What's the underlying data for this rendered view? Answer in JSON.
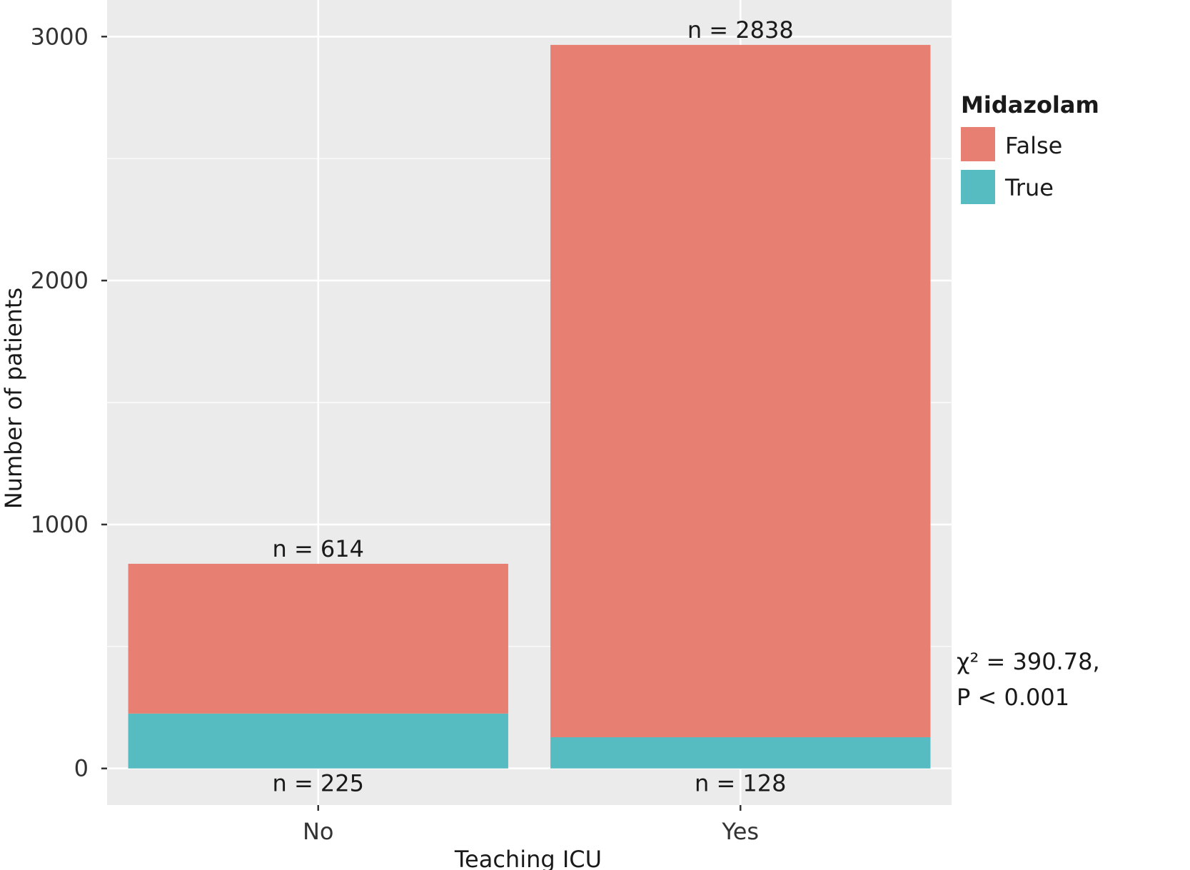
{
  "chart_data": {
    "type": "bar",
    "stacked": true,
    "categories": [
      "No",
      "Yes"
    ],
    "series": [
      {
        "name": "True",
        "color": "#56BCC2",
        "values": [
          225,
          128
        ]
      },
      {
        "name": "False",
        "color": "#E77F72",
        "values": [
          614,
          2838
        ]
      }
    ],
    "xlabel": "Teaching ICU",
    "ylabel": "Number of patients",
    "yticks": [
      0,
      1000,
      2000,
      3000
    ],
    "ylim": [
      -150,
      3150
    ],
    "grid": true,
    "background": "#EBEBEB",
    "legend": {
      "title": "Midazolam",
      "position": "right",
      "items": [
        "False",
        "True"
      ]
    },
    "data_labels": {
      "top": [
        "n = 614",
        "n = 2838"
      ],
      "bottom": [
        "n = 225",
        "n = 128"
      ]
    },
    "annotation": {
      "line1": "χ² = 390.78,",
      "line2": "P < 0.001"
    }
  }
}
